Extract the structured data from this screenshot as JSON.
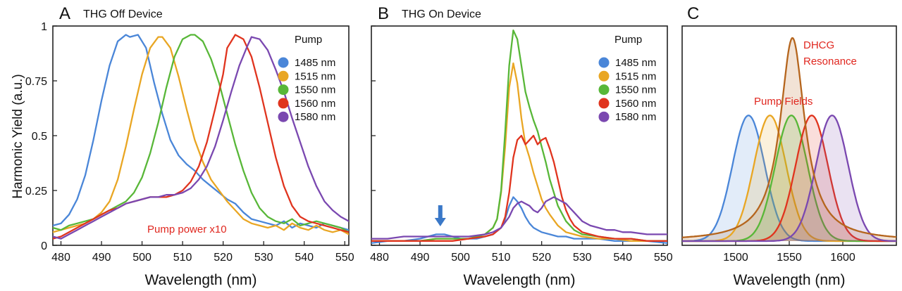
{
  "figure": {
    "ylabel": "Harmonic Yield  (a.u.)",
    "colors": {
      "1485": "#4a86d8",
      "1515": "#e9a623",
      "1550": "#58b738",
      "1560": "#e0341e",
      "1580": "#7a48b0",
      "annot": "#e0271f",
      "arrow": "#3a78c8",
      "dhcg": "#b5651d"
    }
  },
  "chart_data": [
    {
      "type": "line",
      "panel": "A",
      "title": "THG Off Device",
      "xlabel": "Wavelength (nm)",
      "ylabel": "Harmonic Yield  (a.u.)",
      "xlim": [
        478,
        551
      ],
      "ylim": [
        0,
        1
      ],
      "xticks": [
        480,
        490,
        500,
        510,
        520,
        530,
        540,
        550
      ],
      "yticks": [
        0,
        0.25,
        0.5,
        0.75,
        1
      ],
      "ytick_labels": [
        "0",
        "0.25",
        "0.5",
        "0.75",
        "1"
      ],
      "legend_title": "Pump",
      "annotation": "Pump power x10",
      "series": [
        {
          "name": "1485 nm",
          "key": "1485",
          "x": [
            478,
            480,
            482,
            484,
            486,
            488,
            490,
            492,
            494,
            496,
            497,
            499,
            501,
            503,
            505,
            507,
            509,
            511,
            513,
            515,
            517,
            519,
            521,
            523,
            525,
            527,
            529,
            531,
            533,
            535,
            537,
            539,
            541,
            543,
            545,
            547,
            549,
            551
          ],
          "y": [
            0.09,
            0.1,
            0.14,
            0.21,
            0.32,
            0.48,
            0.66,
            0.82,
            0.93,
            0.96,
            0.95,
            0.96,
            0.9,
            0.74,
            0.6,
            0.48,
            0.41,
            0.37,
            0.34,
            0.3,
            0.27,
            0.24,
            0.21,
            0.19,
            0.15,
            0.12,
            0.11,
            0.1,
            0.09,
            0.11,
            0.08,
            0.1,
            0.09,
            0.08,
            0.1,
            0.09,
            0.08,
            0.07
          ]
        },
        {
          "name": "1515 nm",
          "key": "1515",
          "x": [
            478,
            480,
            482,
            484,
            486,
            488,
            490,
            492,
            494,
            496,
            498,
            500,
            502,
            504,
            505,
            507,
            509,
            511,
            513,
            515,
            517,
            519,
            521,
            523,
            525,
            527,
            529,
            531,
            533,
            535,
            537,
            539,
            541,
            543,
            545,
            547,
            549,
            551
          ],
          "y": [
            0.06,
            0.07,
            0.08,
            0.09,
            0.1,
            0.12,
            0.15,
            0.2,
            0.3,
            0.45,
            0.62,
            0.78,
            0.9,
            0.95,
            0.95,
            0.9,
            0.77,
            0.62,
            0.48,
            0.38,
            0.3,
            0.25,
            0.2,
            0.16,
            0.12,
            0.1,
            0.09,
            0.08,
            0.09,
            0.07,
            0.1,
            0.08,
            0.07,
            0.09,
            0.07,
            0.06,
            0.07,
            0.05
          ]
        },
        {
          "name": "1550 nm",
          "key": "1550",
          "x": [
            478,
            480,
            482,
            484,
            486,
            488,
            490,
            492,
            494,
            496,
            498,
            500,
            502,
            504,
            506,
            508,
            510,
            512,
            513,
            515,
            517,
            519,
            521,
            523,
            525,
            527,
            529,
            531,
            533,
            535,
            537,
            539,
            541,
            543,
            545,
            547,
            549,
            551
          ],
          "y": [
            0.08,
            0.07,
            0.09,
            0.1,
            0.11,
            0.12,
            0.14,
            0.16,
            0.18,
            0.2,
            0.24,
            0.31,
            0.42,
            0.56,
            0.72,
            0.86,
            0.94,
            0.96,
            0.96,
            0.93,
            0.85,
            0.74,
            0.6,
            0.46,
            0.34,
            0.24,
            0.17,
            0.13,
            0.11,
            0.1,
            0.12,
            0.09,
            0.1,
            0.11,
            0.1,
            0.09,
            0.08,
            0.06
          ]
        },
        {
          "name": "1560 nm",
          "key": "1560",
          "x": [
            478,
            480,
            482,
            484,
            486,
            488,
            490,
            492,
            494,
            496,
            498,
            500,
            502,
            504,
            506,
            508,
            510,
            512,
            514,
            516,
            518,
            520,
            521,
            523,
            525,
            527,
            529,
            531,
            533,
            535,
            537,
            539,
            541,
            543,
            545,
            547,
            549,
            551
          ],
          "y": [
            0.03,
            0.04,
            0.06,
            0.08,
            0.1,
            0.12,
            0.14,
            0.16,
            0.17,
            0.19,
            0.2,
            0.21,
            0.22,
            0.22,
            0.22,
            0.23,
            0.25,
            0.29,
            0.36,
            0.47,
            0.62,
            0.78,
            0.9,
            0.96,
            0.94,
            0.86,
            0.72,
            0.56,
            0.4,
            0.27,
            0.18,
            0.13,
            0.11,
            0.1,
            0.09,
            0.08,
            0.07,
            0.06
          ]
        },
        {
          "name": "1580 nm",
          "key": "1580",
          "x": [
            478,
            480,
            482,
            484,
            486,
            488,
            490,
            492,
            494,
            496,
            498,
            500,
            502,
            504,
            506,
            508,
            510,
            512,
            514,
            516,
            518,
            520,
            522,
            524,
            526,
            527,
            529,
            531,
            533,
            535,
            537,
            539,
            541,
            543,
            545,
            547,
            549,
            551
          ],
          "y": [
            0.04,
            0.03,
            0.05,
            0.07,
            0.09,
            0.11,
            0.13,
            0.15,
            0.17,
            0.19,
            0.2,
            0.21,
            0.22,
            0.22,
            0.23,
            0.23,
            0.24,
            0.26,
            0.3,
            0.36,
            0.45,
            0.57,
            0.7,
            0.82,
            0.91,
            0.95,
            0.94,
            0.89,
            0.8,
            0.7,
            0.58,
            0.47,
            0.36,
            0.27,
            0.2,
            0.16,
            0.13,
            0.11
          ]
        }
      ]
    },
    {
      "type": "line",
      "panel": "B",
      "title": "THG On Device",
      "xlabel": "Wavelength (nm)",
      "xlim": [
        478,
        551
      ],
      "ylim": [
        0,
        1
      ],
      "xticks": [
        480,
        490,
        500,
        510,
        520,
        530,
        540,
        550
      ],
      "yticks": [
        0,
        0.25,
        0.5,
        0.75,
        1
      ],
      "legend_title": "Pump",
      "arrow_at_wavelength": 495,
      "series": [
        {
          "name": "1485 nm",
          "key": "1485",
          "x": [
            478,
            482,
            486,
            490,
            492,
            494,
            496,
            498,
            500,
            502,
            504,
            506,
            508,
            510,
            511,
            512,
            513,
            514,
            515,
            516,
            517,
            518,
            519,
            520,
            522,
            524,
            526,
            528,
            530,
            534,
            538,
            542,
            546,
            551
          ],
          "y": [
            0.01,
            0.02,
            0.02,
            0.03,
            0.04,
            0.05,
            0.05,
            0.04,
            0.03,
            0.03,
            0.03,
            0.04,
            0.05,
            0.08,
            0.12,
            0.18,
            0.22,
            0.2,
            0.17,
            0.13,
            0.1,
            0.08,
            0.07,
            0.06,
            0.05,
            0.04,
            0.04,
            0.03,
            0.03,
            0.03,
            0.02,
            0.02,
            0.02,
            0.01
          ]
        },
        {
          "name": "1515 nm",
          "key": "1515",
          "x": [
            478,
            482,
            486,
            490,
            494,
            498,
            502,
            504,
            506,
            508,
            509,
            510,
            511,
            512,
            513,
            514,
            515,
            516,
            517,
            518,
            519,
            520,
            521,
            522,
            524,
            526,
            528,
            530,
            534,
            538,
            542,
            546,
            551
          ],
          "y": [
            0.02,
            0.02,
            0.02,
            0.02,
            0.03,
            0.03,
            0.03,
            0.04,
            0.05,
            0.08,
            0.12,
            0.24,
            0.45,
            0.72,
            0.83,
            0.74,
            0.58,
            0.46,
            0.4,
            0.33,
            0.27,
            0.21,
            0.17,
            0.14,
            0.09,
            0.06,
            0.05,
            0.04,
            0.03,
            0.03,
            0.02,
            0.02,
            0.02
          ]
        },
        {
          "name": "1550 nm",
          "key": "1550",
          "x": [
            478,
            482,
            486,
            490,
            494,
            498,
            502,
            504,
            506,
            508,
            509,
            510,
            511,
            512,
            513,
            514,
            515,
            516,
            517,
            518,
            519,
            520,
            521,
            522,
            524,
            526,
            528,
            530,
            534,
            538,
            542,
            546,
            551
          ],
          "y": [
            0.02,
            0.02,
            0.02,
            0.02,
            0.03,
            0.03,
            0.03,
            0.04,
            0.05,
            0.08,
            0.12,
            0.25,
            0.52,
            0.82,
            0.98,
            0.94,
            0.82,
            0.7,
            0.63,
            0.57,
            0.52,
            0.45,
            0.38,
            0.3,
            0.18,
            0.11,
            0.07,
            0.05,
            0.04,
            0.03,
            0.03,
            0.02,
            0.02
          ]
        },
        {
          "name": "1560 nm",
          "key": "1560",
          "x": [
            478,
            482,
            486,
            490,
            494,
            498,
            502,
            506,
            508,
            510,
            511,
            512,
            513,
            514,
            515,
            516,
            517,
            518,
            519,
            520,
            521,
            522,
            523,
            524,
            525,
            526,
            527,
            528,
            530,
            534,
            538,
            542,
            546,
            551
          ],
          "y": [
            0.02,
            0.02,
            0.02,
            0.02,
            0.02,
            0.02,
            0.03,
            0.04,
            0.05,
            0.08,
            0.13,
            0.24,
            0.4,
            0.48,
            0.5,
            0.46,
            0.48,
            0.5,
            0.46,
            0.48,
            0.49,
            0.44,
            0.38,
            0.3,
            0.22,
            0.16,
            0.12,
            0.09,
            0.06,
            0.04,
            0.03,
            0.03,
            0.02,
            0.02
          ]
        },
        {
          "name": "1580 nm",
          "key": "1580",
          "x": [
            478,
            482,
            486,
            490,
            494,
            498,
            502,
            506,
            508,
            510,
            512,
            513,
            514,
            515,
            516,
            517,
            518,
            519,
            520,
            521,
            522,
            523,
            524,
            525,
            526,
            527,
            528,
            530,
            532,
            534,
            536,
            538,
            540,
            542,
            546,
            551
          ],
          "y": [
            0.03,
            0.03,
            0.04,
            0.04,
            0.04,
            0.04,
            0.04,
            0.05,
            0.06,
            0.08,
            0.13,
            0.17,
            0.19,
            0.2,
            0.19,
            0.18,
            0.16,
            0.15,
            0.17,
            0.2,
            0.21,
            0.22,
            0.21,
            0.2,
            0.19,
            0.17,
            0.15,
            0.11,
            0.09,
            0.08,
            0.07,
            0.07,
            0.06,
            0.06,
            0.05,
            0.05
          ]
        }
      ]
    },
    {
      "type": "line",
      "panel": "C",
      "title": "",
      "xlabel": "Wavelength (nm)",
      "xlim": [
        1450,
        1650
      ],
      "xticks": [
        1500,
        1550,
        1600
      ],
      "ylim": [
        0,
        1
      ],
      "annotations": [
        "Pump Fields",
        "DHCG",
        "Resonance"
      ],
      "pump_fields": [
        {
          "key": "1485",
          "center": 1512,
          "width": 15,
          "peak": 0.6
        },
        {
          "key": "1515",
          "center": 1532,
          "width": 15,
          "peak": 0.6
        },
        {
          "key": "1550",
          "center": 1552,
          "width": 15,
          "peak": 0.6
        },
        {
          "key": "1560",
          "center": 1571,
          "width": 15,
          "peak": 0.6
        },
        {
          "key": "1580",
          "center": 1590,
          "width": 15,
          "peak": 0.6
        }
      ],
      "resonance": {
        "key": "dhcg",
        "center": 1553,
        "gamma": 14,
        "peak": 0.97
      }
    }
  ]
}
